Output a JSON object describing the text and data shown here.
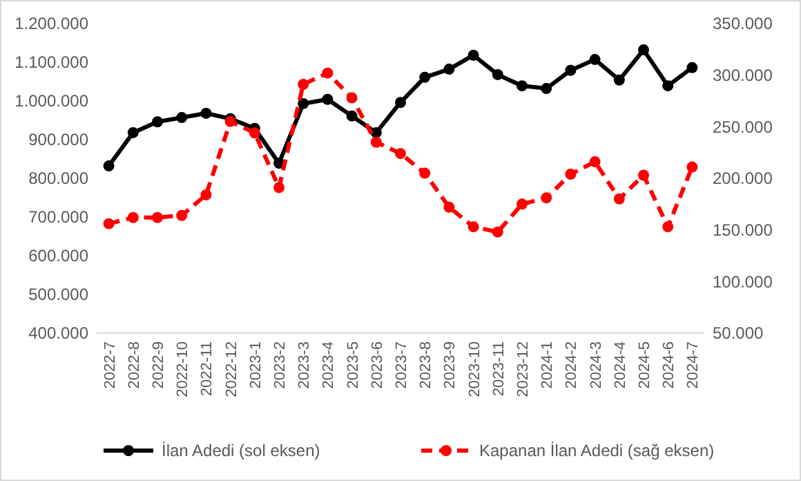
{
  "chart_data": {
    "type": "line",
    "categories": [
      "2022-7",
      "2022-8",
      "2022-9",
      "2022-10",
      "2022-11",
      "2022-12",
      "2023-1",
      "2023-2",
      "2023-3",
      "2023-4",
      "2023-5",
      "2023-6",
      "2023-7",
      "2023-8",
      "2023-9",
      "2023-10",
      "2023-11",
      "2023-12",
      "2024-1",
      "2024-2",
      "2024-3",
      "2024-4",
      "2024-5",
      "2024-6",
      "2024-7"
    ],
    "series": [
      {
        "name": "İlan Adedi (sol eksen)",
        "color": "#000000",
        "line_style": "solid",
        "values": [
          832000,
          918000,
          946000,
          957000,
          968000,
          954000,
          929000,
          839000,
          993000,
          1004000,
          961000,
          918000,
          996000,
          1061000,
          1082000,
          1118000,
          1068000,
          1039000,
          1032000,
          1079000,
          1107000,
          1054000,
          1132000,
          1039000,
          1086000
        ]
      },
      {
        "name": "Kapanan İlan Adedi (sağ eksen)",
        "color": "#ff0000",
        "line_style": "dashed",
        "axis": "y2",
        "values": [
          156000,
          162000,
          162000,
          164000,
          184000,
          255000,
          244000,
          191000,
          291000,
          302000,
          278000,
          235000,
          224000,
          205000,
          172000,
          153000,
          148000,
          175000,
          181000,
          204000,
          216000,
          180000,
          203000,
          153000,
          211000
        ]
      }
    ],
    "ylim": [
      400000,
      1200000
    ],
    "yticks": [
      {
        "value": 400000,
        "label": "400.000"
      },
      {
        "value": 500000,
        "label": "500.000"
      },
      {
        "value": 600000,
        "label": "600.000"
      },
      {
        "value": 700000,
        "label": "700.000"
      },
      {
        "value": 800000,
        "label": "800.000"
      },
      {
        "value": 900000,
        "label": "900.000"
      },
      {
        "value": 1000000,
        "label": "1.000.000"
      },
      {
        "value": 1100000,
        "label": "1.100.000"
      },
      {
        "value": 1200000,
        "label": "1.200.000"
      }
    ],
    "y2lim": [
      50000,
      350000
    ],
    "y2ticks": [
      {
        "value": 50000,
        "label": "50.000"
      },
      {
        "value": 100000,
        "label": "100.000"
      },
      {
        "value": 150000,
        "label": "150.000"
      },
      {
        "value": 200000,
        "label": "200.000"
      },
      {
        "value": 250000,
        "label": "250.000"
      },
      {
        "value": 300000,
        "label": "300.000"
      },
      {
        "value": 350000,
        "label": "350.000"
      }
    ],
    "marker": "circle",
    "legend": "bottom",
    "grid": false
  }
}
